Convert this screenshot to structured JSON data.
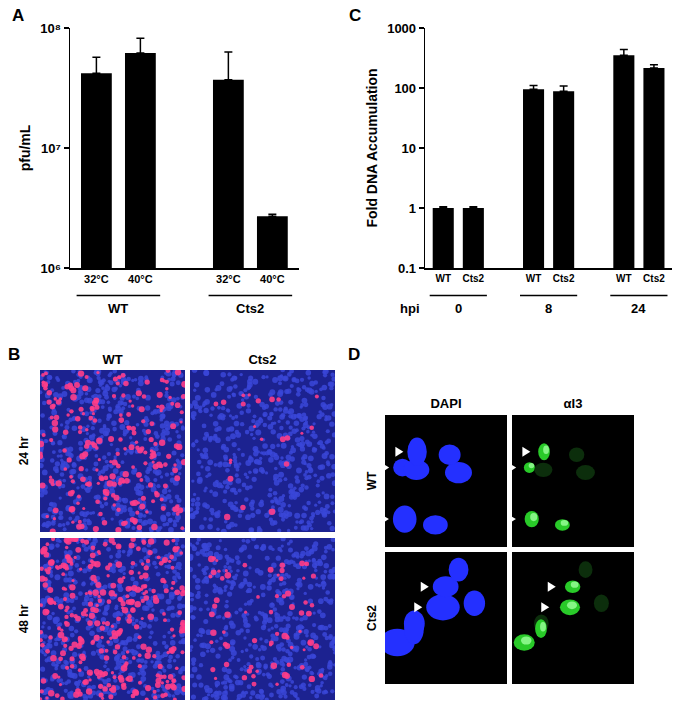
{
  "chart_data": [
    {
      "type": "bar",
      "title": "A",
      "y_label": "pfu/mL",
      "categories": [
        "32°C",
        "40°C",
        null,
        "32°C",
        "40°C"
      ],
      "values": [
        42000000,
        62000000,
        null,
        37000000,
        2700000
      ],
      "error_plus": [
        15000000,
        20000000,
        null,
        26000000,
        100000
      ],
      "groups": [
        {
          "label": "WT",
          "from": 0,
          "to": 1
        },
        {
          "label": "Cts2",
          "from": 3,
          "to": 4
        }
      ],
      "color": "#000000",
      "log": "y",
      "grid": false,
      "ylim": [
        1000000,
        100000000
      ],
      "yticks": [
        {
          "value": 1000000,
          "label": "10⁶"
        },
        {
          "value": 10000000,
          "label": "10⁷"
        },
        {
          "value": 100000000,
          "label": "10⁸"
        }
      ]
    },
    {
      "type": "bar",
      "title": "C",
      "y_label": "Fold DNA Accumulation",
      "x_label": "hpi",
      "categories": [
        "WT",
        "Cts2",
        null,
        "WT",
        "Cts2",
        null,
        "WT",
        "Cts2"
      ],
      "values": [
        1,
        1,
        null,
        95,
        88,
        null,
        350,
        215
      ],
      "error_plus": [
        0.05,
        0.05,
        null,
        15,
        20,
        null,
        90,
        30
      ],
      "groups": [
        {
          "label": "0",
          "from": 0,
          "to": 1
        },
        {
          "label": "8",
          "from": 3,
          "to": 4
        },
        {
          "label": "24",
          "from": 6,
          "to": 7
        }
      ],
      "color": "#000000",
      "log": "y",
      "grid": false,
      "ylim": [
        0.1,
        1000
      ],
      "yticks": [
        0.1,
        1,
        10,
        100,
        1000
      ]
    }
  ],
  "images": [
    {
      "title": "B",
      "columns": [
        "WT",
        "Cts2"
      ],
      "rows": [
        "24 hr",
        "48 hr"
      ]
    },
    {
      "title": "D",
      "columns": [
        "DAPI",
        "αI3"
      ],
      "rows": [
        "WT",
        "Cts2"
      ]
    }
  ]
}
